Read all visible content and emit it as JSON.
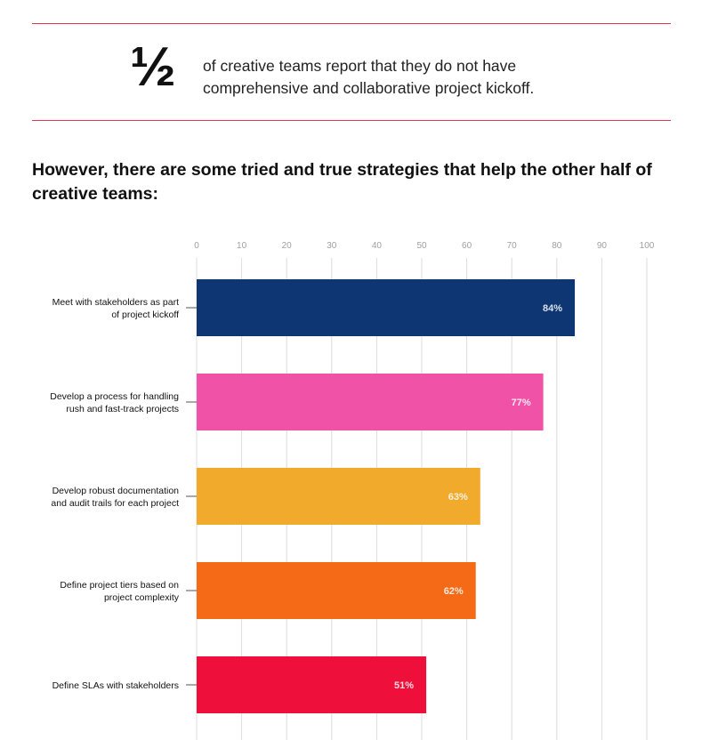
{
  "stat": {
    "number": "½",
    "text": "of creative teams report that they do not have comprehensive and collaborative project kickoff."
  },
  "headline": "However, there are some tried and true strategies that help the other half of creative teams:",
  "chart_data": {
    "type": "bar",
    "orientation": "horizontal",
    "xlim": [
      0,
      100
    ],
    "ticks": [
      0,
      10,
      20,
      30,
      40,
      50,
      60,
      70,
      80,
      90,
      100
    ],
    "grid": true,
    "categories": [
      [
        "Meet with stakeholders as part",
        "of project kickoff"
      ],
      [
        "Develop a process for handling",
        "rush and fast-track projects"
      ],
      [
        "Develop robust documentation",
        "and audit trails for each project"
      ],
      [
        "Define project tiers based on",
        "project complexity"
      ],
      [
        "Define SLAs with stakeholders"
      ]
    ],
    "values": [
      84,
      77,
      63,
      62,
      51
    ],
    "value_labels": [
      "84%",
      "77%",
      "63%",
      "62%",
      "51%"
    ],
    "colors": [
      "#0d3672",
      "#f052a8",
      "#f1aa2c",
      "#f46a16",
      "#ee0f3b"
    ]
  }
}
